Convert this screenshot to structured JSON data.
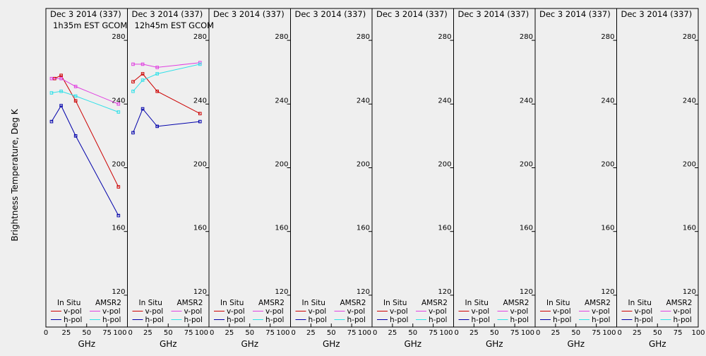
{
  "figure": {
    "ylabel": "Brightness Temperature, Deg K",
    "xlabel": "GHz",
    "legend": {
      "insitu_header": "In Situ",
      "amsr2_header": "AMSR2",
      "vpol_label": "v-pol",
      "hpol_label": "h-pol"
    },
    "colors": {
      "insitu_v": "#cc0000",
      "insitu_h": "#0000aa",
      "amsr2_v": "#e040e0",
      "amsr2_h": "#30e0e8",
      "background": "#efefef"
    }
  },
  "chart_data": [
    {
      "type": "line",
      "title": "Dec 3 2014 (337)",
      "subtitle": "1h35m EST GCOM",
      "xlabel": "GHz",
      "ylabel": "Brightness Temperature, Deg K",
      "xlim": [
        0,
        100
      ],
      "ylim": [
        100,
        300
      ],
      "xticks": [
        0,
        25,
        50,
        75,
        100
      ],
      "yticks": [
        120,
        160,
        200,
        240,
        280
      ],
      "grid": false,
      "legend_position": "bottom",
      "series": [
        {
          "name": "In Situ v-pol",
          "color": "#cc0000",
          "x": [
            10.7,
            18.7,
            36.5,
            89
          ],
          "y": [
            256,
            258,
            242,
            188
          ]
        },
        {
          "name": "In Situ h-pol",
          "color": "#0000aa",
          "x": [
            6.9,
            18.7,
            36.5,
            89
          ],
          "y": [
            229,
            239,
            220,
            170
          ]
        },
        {
          "name": "AMSR2 v-pol",
          "color": "#e040e0",
          "x": [
            6.9,
            18.7,
            36.5,
            89
          ],
          "y": [
            256,
            256,
            251,
            240
          ]
        },
        {
          "name": "AMSR2 h-pol",
          "color": "#30e0e8",
          "x": [
            6.9,
            18.7,
            36.5,
            89
          ],
          "y": [
            247,
            248,
            245,
            235
          ]
        }
      ]
    },
    {
      "type": "line",
      "title": "Dec 3 2014 (337)",
      "subtitle": "12h45m EST GCOM",
      "xlabel": "GHz",
      "ylabel": "",
      "xlim": [
        0,
        100
      ],
      "ylim": [
        100,
        300
      ],
      "xticks": [
        0,
        25,
        50,
        75,
        100
      ],
      "yticks": [
        120,
        160,
        200,
        240,
        280
      ],
      "grid": false,
      "legend_position": "bottom",
      "series": [
        {
          "name": "In Situ v-pol",
          "color": "#cc0000",
          "x": [
            6.9,
            18.7,
            36.5,
            89
          ],
          "y": [
            254,
            259,
            248,
            234
          ]
        },
        {
          "name": "In Situ h-pol",
          "color": "#0000aa",
          "x": [
            6.9,
            18.7,
            36.5,
            89
          ],
          "y": [
            222,
            237,
            226,
            229
          ]
        },
        {
          "name": "AMSR2 v-pol",
          "color": "#e040e0",
          "x": [
            6.9,
            18.7,
            36.5,
            89
          ],
          "y": [
            265,
            265,
            263,
            266
          ]
        },
        {
          "name": "AMSR2 h-pol",
          "color": "#30e0e8",
          "x": [
            6.9,
            18.7,
            36.5,
            89
          ],
          "y": [
            248,
            255,
            259,
            265
          ]
        }
      ]
    },
    {
      "type": "line",
      "title": "Dec 3 2014 (337)",
      "subtitle": "",
      "xlabel": "GHz",
      "ylabel": "",
      "xlim": [
        0,
        100
      ],
      "ylim": [
        100,
        300
      ],
      "xticks": [
        0,
        25,
        50,
        75,
        100
      ],
      "yticks": [
        120,
        160,
        200,
        240,
        280
      ],
      "grid": false,
      "legend_position": "bottom",
      "series": []
    },
    {
      "type": "line",
      "title": "Dec 3 2014 (337)",
      "subtitle": "",
      "xlabel": "GHz",
      "ylabel": "",
      "xlim": [
        0,
        100
      ],
      "ylim": [
        100,
        300
      ],
      "xticks": [
        0,
        25,
        50,
        75,
        100
      ],
      "yticks": [
        120,
        160,
        200,
        240,
        280
      ],
      "grid": false,
      "legend_position": "bottom",
      "series": []
    },
    {
      "type": "line",
      "title": "Dec 3 2014 (337)",
      "subtitle": "",
      "xlabel": "GHz",
      "ylabel": "",
      "xlim": [
        0,
        100
      ],
      "ylim": [
        100,
        300
      ],
      "xticks": [
        0,
        25,
        50,
        75,
        100
      ],
      "yticks": [
        120,
        160,
        200,
        240,
        280
      ],
      "grid": false,
      "legend_position": "bottom",
      "series": []
    },
    {
      "type": "line",
      "title": "Dec 3 2014 (337)",
      "subtitle": "",
      "xlabel": "GHz",
      "ylabel": "",
      "xlim": [
        0,
        100
      ],
      "ylim": [
        100,
        300
      ],
      "xticks": [
        0,
        25,
        50,
        75,
        100
      ],
      "yticks": [
        120,
        160,
        200,
        240,
        280
      ],
      "grid": false,
      "legend_position": "bottom",
      "series": []
    },
    {
      "type": "line",
      "title": "Dec 3 2014 (337)",
      "subtitle": "",
      "xlabel": "GHz",
      "ylabel": "",
      "xlim": [
        0,
        100
      ],
      "ylim": [
        100,
        300
      ],
      "xticks": [
        0,
        25,
        50,
        75,
        100
      ],
      "yticks": [
        120,
        160,
        200,
        240,
        280
      ],
      "grid": false,
      "legend_position": "bottom",
      "series": []
    },
    {
      "type": "line",
      "title": "Dec 3 2014 (337)",
      "subtitle": "",
      "xlabel": "GHz",
      "ylabel": "",
      "xlim": [
        0,
        100
      ],
      "ylim": [
        100,
        300
      ],
      "xticks": [
        0,
        25,
        50,
        75,
        100
      ],
      "yticks": [
        120,
        160,
        200,
        240,
        280
      ],
      "grid": false,
      "legend_position": "bottom",
      "series": []
    }
  ]
}
